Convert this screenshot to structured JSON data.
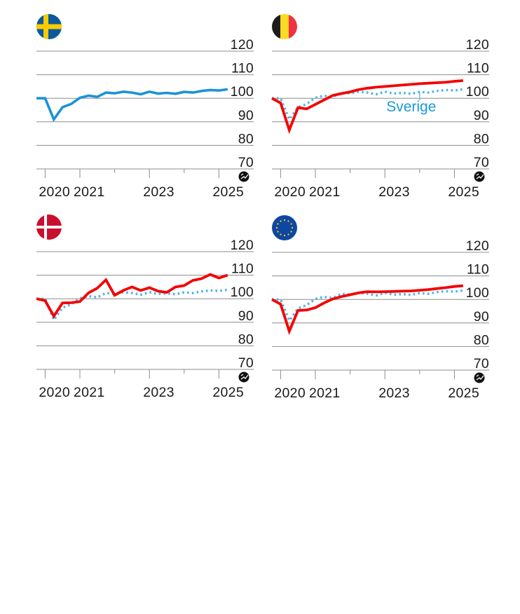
{
  "colors": {
    "sweden_line": "#1a93d6",
    "country_line": "#f40000",
    "sweden_dotted": "#4db3e6",
    "grid": "#8c8c8c",
    "text": "#1a1a1a"
  },
  "annotation_label": "Sverige",
  "source_icon": "bloomberg-source-icon",
  "chart_data": [
    {
      "type": "line",
      "panel": "sweden",
      "flag": "sweden-flag-icon",
      "title": "",
      "xlabel": "",
      "ylabel": "",
      "ylim": [
        70,
        120
      ],
      "yticks": [
        "120",
        "110",
        "100",
        "90",
        "80",
        "70"
      ],
      "yticks_values": [
        120,
        110,
        100,
        90,
        80,
        70
      ],
      "xticks": [
        {
          "value": 2020,
          "label": "2020"
        },
        {
          "value": 2021,
          "label": "2021"
        },
        {
          "value": 2022,
          "label": ""
        },
        {
          "value": 2023,
          "label": "2023"
        },
        {
          "value": 2024,
          "label": ""
        },
        {
          "value": 2025,
          "label": "2025"
        }
      ],
      "xlim": [
        2019.75,
        2026.0
      ],
      "grid": true,
      "legend": "none",
      "x": [
        2019.75,
        2020.0,
        2020.25,
        2020.5,
        2020.75,
        2021.0,
        2021.25,
        2021.5,
        2021.75,
        2022.0,
        2022.25,
        2022.5,
        2022.75,
        2023.0,
        2023.25,
        2023.5,
        2023.75,
        2024.0,
        2024.25,
        2024.5,
        2024.75,
        2025.0,
        2025.25
      ],
      "series": [
        {
          "name": "Sverige",
          "style": "solid-blue",
          "values": [
            100,
            100,
            91,
            96.2,
            97.6,
            100.2,
            101.1,
            100.6,
            102.4,
            102.1,
            102.8,
            102.4,
            101.7,
            102.8,
            102.0,
            102.3,
            101.9,
            102.7,
            102.4,
            103.1,
            103.5,
            103.3,
            103.8
          ]
        }
      ]
    },
    {
      "type": "line",
      "panel": "belgium",
      "flag": "belgium-flag-icon",
      "ylim": [
        70,
        120
      ],
      "yticks": [
        "120",
        "110",
        "100",
        "90",
        "80",
        "70"
      ],
      "yticks_values": [
        120,
        110,
        100,
        90,
        80,
        70
      ],
      "xticks": [
        {
          "value": 2020,
          "label": "2020"
        },
        {
          "value": 2021,
          "label": "2021"
        },
        {
          "value": 2022,
          "label": ""
        },
        {
          "value": 2023,
          "label": "2023"
        },
        {
          "value": 2024,
          "label": ""
        },
        {
          "value": 2025,
          "label": "2025"
        }
      ],
      "xlim": [
        2019.75,
        2026.0
      ],
      "grid": true,
      "legend": "annotation",
      "annotation": {
        "text": "Sverige",
        "x": 2024.0
      },
      "x": [
        2019.75,
        2020.0,
        2020.25,
        2020.5,
        2020.75,
        2021.0,
        2021.25,
        2021.5,
        2021.75,
        2022.0,
        2022.25,
        2022.5,
        2022.75,
        2023.0,
        2023.25,
        2023.5,
        2023.75,
        2024.0,
        2024.25,
        2024.5,
        2024.75,
        2025.0,
        2025.25
      ],
      "series": [
        {
          "name": "Belgien",
          "style": "solid-red",
          "values": [
            100,
            98,
            86.5,
            96.0,
            95.5,
            97.4,
            99.3,
            101.2,
            102.0,
            102.7,
            103.7,
            104.3,
            104.7,
            105.0,
            105.3,
            105.6,
            105.9,
            106.2,
            106.4,
            106.6,
            106.8,
            107.2,
            107.5
          ]
        },
        {
          "name": "Sverige",
          "style": "dotted-blue",
          "values": [
            100,
            100,
            91,
            96.2,
            97.6,
            100.2,
            101.1,
            100.6,
            102.4,
            102.1,
            102.8,
            102.4,
            101.7,
            102.8,
            102.0,
            102.3,
            101.9,
            102.7,
            102.4,
            103.1,
            103.5,
            103.3,
            103.8
          ]
        }
      ]
    },
    {
      "type": "line",
      "panel": "denmark",
      "flag": "denmark-flag-icon",
      "ylim": [
        70,
        120
      ],
      "yticks": [
        "120",
        "110",
        "100",
        "90",
        "80",
        "70"
      ],
      "yticks_values": [
        120,
        110,
        100,
        90,
        80,
        70
      ],
      "xticks": [
        {
          "value": 2020,
          "label": "2020"
        },
        {
          "value": 2021,
          "label": "2021"
        },
        {
          "value": 2022,
          "label": ""
        },
        {
          "value": 2023,
          "label": "2023"
        },
        {
          "value": 2024,
          "label": ""
        },
        {
          "value": 2025,
          "label": "2025"
        }
      ],
      "xlim": [
        2019.75,
        2026.0
      ],
      "grid": true,
      "legend": "none",
      "x": [
        2019.75,
        2020.0,
        2020.25,
        2020.5,
        2020.75,
        2021.0,
        2021.25,
        2021.5,
        2021.75,
        2022.0,
        2022.25,
        2022.5,
        2022.75,
        2023.0,
        2023.25,
        2023.5,
        2023.75,
        2024.0,
        2024.25,
        2024.5,
        2024.75,
        2025.0,
        2025.25
      ],
      "series": [
        {
          "name": "Danmark",
          "style": "solid-red",
          "values": [
            100,
            99.2,
            92.6,
            98.2,
            98.3,
            98.8,
            102.5,
            104.5,
            108.0,
            101.5,
            103.5,
            105.0,
            103.5,
            104.7,
            103.2,
            102.7,
            105.0,
            105.6,
            107.8,
            108.5,
            110.3,
            108.8,
            110.0
          ]
        },
        {
          "name": "Sverige",
          "style": "dotted-blue",
          "values": [
            100,
            100,
            91,
            96.2,
            97.6,
            100.2,
            101.1,
            100.6,
            102.4,
            102.1,
            102.8,
            102.4,
            101.7,
            102.8,
            102.0,
            102.3,
            101.9,
            102.7,
            102.4,
            103.1,
            103.5,
            103.3,
            103.8
          ]
        }
      ]
    },
    {
      "type": "line",
      "panel": "eu",
      "flag": "eu-flag-icon",
      "ylim": [
        70,
        120
      ],
      "yticks": [
        "120",
        "110",
        "100",
        "90",
        "80",
        "70"
      ],
      "yticks_values": [
        120,
        110,
        100,
        90,
        80,
        70
      ],
      "xticks": [
        {
          "value": 2020,
          "label": "2020"
        },
        {
          "value": 2021,
          "label": "2021"
        },
        {
          "value": 2022,
          "label": ""
        },
        {
          "value": 2023,
          "label": "2023"
        },
        {
          "value": 2024,
          "label": ""
        },
        {
          "value": 2025,
          "label": "2025"
        }
      ],
      "xlim": [
        2019.75,
        2026.0
      ],
      "grid": true,
      "legend": "none",
      "x": [
        2019.75,
        2020.0,
        2020.25,
        2020.5,
        2020.75,
        2021.0,
        2021.25,
        2021.5,
        2021.75,
        2022.0,
        2022.25,
        2022.5,
        2022.75,
        2023.0,
        2023.25,
        2023.5,
        2023.75,
        2024.0,
        2024.25,
        2024.5,
        2024.75,
        2025.0,
        2025.25
      ],
      "series": [
        {
          "name": "EU",
          "style": "solid-red",
          "values": [
            100,
            98,
            86.5,
            95.3,
            95.5,
            96.5,
            98.5,
            100.2,
            101.2,
            102.0,
            102.8,
            103.3,
            103.2,
            103.3,
            103.4,
            103.5,
            103.6,
            103.9,
            104.2,
            104.6,
            105.0,
            105.5,
            105.8
          ]
        },
        {
          "name": "Sverige",
          "style": "dotted-blue",
          "values": [
            100,
            100,
            91,
            96.2,
            97.6,
            100.2,
            101.1,
            100.6,
            102.4,
            102.1,
            102.8,
            102.4,
            101.7,
            102.8,
            102.0,
            102.3,
            101.9,
            102.7,
            102.4,
            103.1,
            103.5,
            103.3,
            103.8
          ]
        }
      ]
    }
  ]
}
